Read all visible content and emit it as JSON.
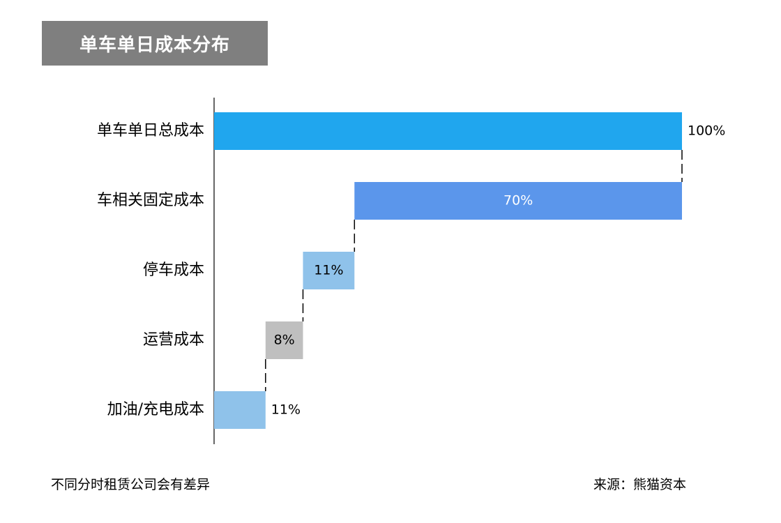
{
  "title": "单车单日成本分布",
  "footnote": "不同分时租赁公司会有差异",
  "source": "来源：熊猫资本",
  "colors": {
    "title_bg": "#7f7f7f",
    "total": "#20a6ee",
    "fixed": "#5b96eb",
    "parking": "#8fc2ea",
    "operating": "#bfbfbf",
    "fuel": "#8fc2ea"
  },
  "chart_data": {
    "type": "bar",
    "subtype": "waterfall-horizontal",
    "categories": [
      "单车单日总成本",
      "车相关固定成本",
      "停车成本",
      "运营成本",
      "加油/充电成本"
    ],
    "values": [
      100,
      70,
      11,
      8,
      11
    ],
    "labels": [
      "100%",
      "70%",
      "11%",
      "8%",
      "11%"
    ],
    "bars": [
      {
        "category": "单车单日总成本",
        "start": 0,
        "end": 100,
        "label": "100%",
        "color_key": "total",
        "label_position": "outside-right",
        "label_color": "#000000"
      },
      {
        "category": "车相关固定成本",
        "start": 30,
        "end": 100,
        "label": "70%",
        "color_key": "fixed",
        "label_position": "inside",
        "label_color": "#ffffff"
      },
      {
        "category": "停车成本",
        "start": 19,
        "end": 30,
        "label": "11%",
        "color_key": "parking",
        "label_position": "inside",
        "label_color": "#000000"
      },
      {
        "category": "运营成本",
        "start": 11,
        "end": 19,
        "label": "8%",
        "color_key": "operating",
        "label_position": "inside",
        "label_color": "#000000"
      },
      {
        "category": "加油/充电成本",
        "start": 0,
        "end": 11,
        "label": "11%",
        "color_key": "fuel",
        "label_position": "outside-right",
        "label_color": "#000000"
      }
    ],
    "xlim": [
      0,
      100
    ],
    "grid": false,
    "legend": "none"
  }
}
